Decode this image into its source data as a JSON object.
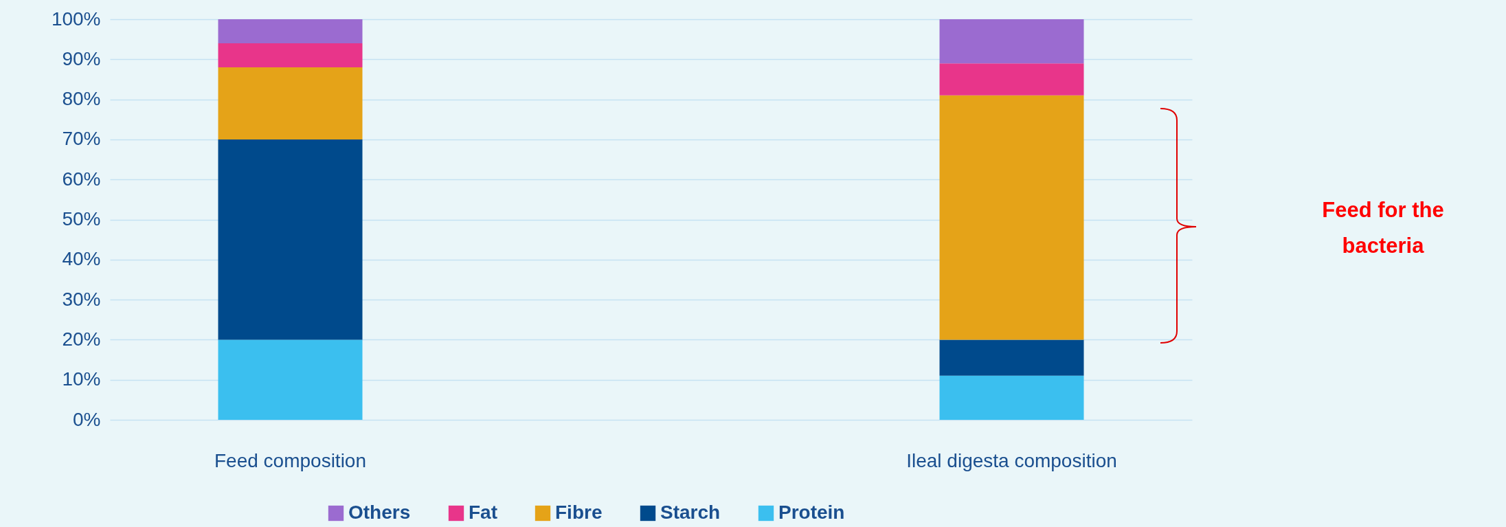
{
  "chart_data": {
    "type": "bar",
    "stacked": true,
    "categories": [
      "Feed composition",
      "Ileal digesta composition"
    ],
    "series": [
      {
        "name": "Protein",
        "color": "#3bbfef",
        "values": [
          20,
          11
        ]
      },
      {
        "name": "Starch",
        "color": "#004a8c",
        "values": [
          50,
          9
        ]
      },
      {
        "name": "Fibre",
        "color": "#e5a318",
        "values": [
          18,
          61
        ]
      },
      {
        "name": "Fat",
        "color": "#e8358a",
        "values": [
          6,
          8
        ]
      },
      {
        "name": "Others",
        "color": "#9b6bd0",
        "values": [
          6,
          11
        ]
      }
    ],
    "ylim": [
      0,
      100
    ],
    "yticks": [
      {
        "value": 0,
        "label": "0%"
      },
      {
        "value": 10,
        "label": "10%"
      },
      {
        "value": 20,
        "label": "20%"
      },
      {
        "value": 30,
        "label": "30%"
      },
      {
        "value": 40,
        "label": "40%"
      },
      {
        "value": 50,
        "label": "50%"
      },
      {
        "value": 60,
        "label": "60%"
      },
      {
        "value": 70,
        "label": "70%"
      },
      {
        "value": 80,
        "label": "80%"
      },
      {
        "value": 90,
        "label": "90%"
      },
      {
        "value": 100,
        "label": "100%"
      }
    ],
    "grid": "y",
    "legend": "bottom",
    "annotations": [
      "Feed for the bacteria"
    ]
  }
}
